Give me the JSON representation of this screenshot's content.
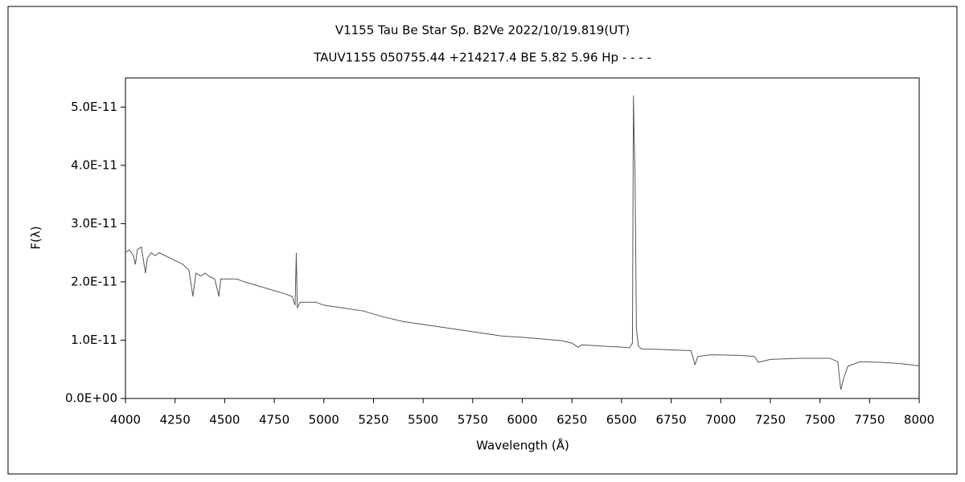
{
  "chart_data": {
    "type": "line",
    "title": "V1155 Tau    Be Star    Sp. B2Ve    2022/10/19.819(UT)",
    "subtitle": "TAUV1155 050755.44 +214217.4 BE 5.82 5.96 Hp - - - -",
    "x_label": "Wavelength (Å)",
    "y_label": "F(λ)",
    "xlim": [
      4000,
      8000
    ],
    "xticks": [
      4000,
      4250,
      4500,
      4750,
      5000,
      5250,
      5500,
      5750,
      6000,
      6250,
      6500,
      6750,
      7000,
      7250,
      7500,
      7750,
      8000
    ],
    "ylim": [
      0,
      5.5e-11
    ],
    "yticks": [
      {
        "value": 0,
        "label": "0.0E+00"
      },
      {
        "value": 1e-11,
        "label": "1.0E-11"
      },
      {
        "value": 2e-11,
        "label": "2.0E-11"
      },
      {
        "value": 3e-11,
        "label": "3.0E-11"
      },
      {
        "value": 4e-11,
        "label": "4.0E-11"
      },
      {
        "value": 5e-11,
        "label": "5.0E-11"
      }
    ],
    "series": [
      {
        "color": "#555555",
        "x": [
          4000,
          4020,
          4040,
          4050,
          4060,
          4080,
          4101,
          4110,
          4130,
          4150,
          4170,
          4200,
          4230,
          4260,
          4290,
          4320,
          4340,
          4355,
          4380,
          4400,
          4420,
          4450,
          4471,
          4480,
          4520,
          4560,
          4600,
          4650,
          4700,
          4750,
          4800,
          4840,
          4855,
          4861,
          4866,
          4880,
          4920,
          4960,
          5000,
          5100,
          5200,
          5300,
          5400,
          5500,
          5600,
          5700,
          5800,
          5900,
          6000,
          6100,
          6200,
          6250,
          6280,
          6300,
          6400,
          6500,
          6540,
          6555,
          6560,
          6563,
          6568,
          6575,
          6585,
          6600,
          6700,
          6850,
          6870,
          6885,
          6950,
          7100,
          7170,
          7190,
          7250,
          7400,
          7550,
          7590,
          7605,
          7620,
          7640,
          7700,
          7800,
          7900,
          8000
        ],
        "values": [
          2.5e-11,
          2.55e-11,
          2.45e-11,
          2.3e-11,
          2.55e-11,
          2.6e-11,
          2.15e-11,
          2.4e-11,
          2.5e-11,
          2.45e-11,
          2.5e-11,
          2.45e-11,
          2.4e-11,
          2.35e-11,
          2.3e-11,
          2.2e-11,
          1.75e-11,
          2.15e-11,
          2.1e-11,
          2.15e-11,
          2.1e-11,
          2.05e-11,
          1.75e-11,
          2.05e-11,
          2.05e-11,
          2.05e-11,
          2e-11,
          1.95e-11,
          1.9e-11,
          1.85e-11,
          1.8e-11,
          1.75e-11,
          1.6e-11,
          2.5e-11,
          1.55e-11,
          1.65e-11,
          1.65e-11,
          1.65e-11,
          1.6e-11,
          1.55e-11,
          1.5e-11,
          1.4e-11,
          1.32e-11,
          1.27e-11,
          1.22e-11,
          1.17e-11,
          1.12e-11,
          1.07e-11,
          1.05e-11,
          1.02e-11,
          9.9e-12,
          9.5e-12,
          8.8e-12,
          9.2e-12,
          9e-12,
          8.8e-12,
          8.7e-12,
          9.5e-12,
          5.2e-11,
          4.6e-11,
          3.9e-11,
          1.2e-11,
          9e-12,
          8.5e-12,
          8.4e-12,
          8.2e-12,
          5.8e-12,
          7.2e-12,
          7.5e-12,
          7.4e-12,
          7.2e-12,
          6.2e-12,
          6.7e-12,
          6.9e-12,
          6.9e-12,
          6.3e-12,
          1.5e-12,
          3.5e-12,
          5.5e-12,
          6.3e-12,
          6.2e-12,
          6e-12,
          5.6e-12
        ]
      }
    ]
  }
}
